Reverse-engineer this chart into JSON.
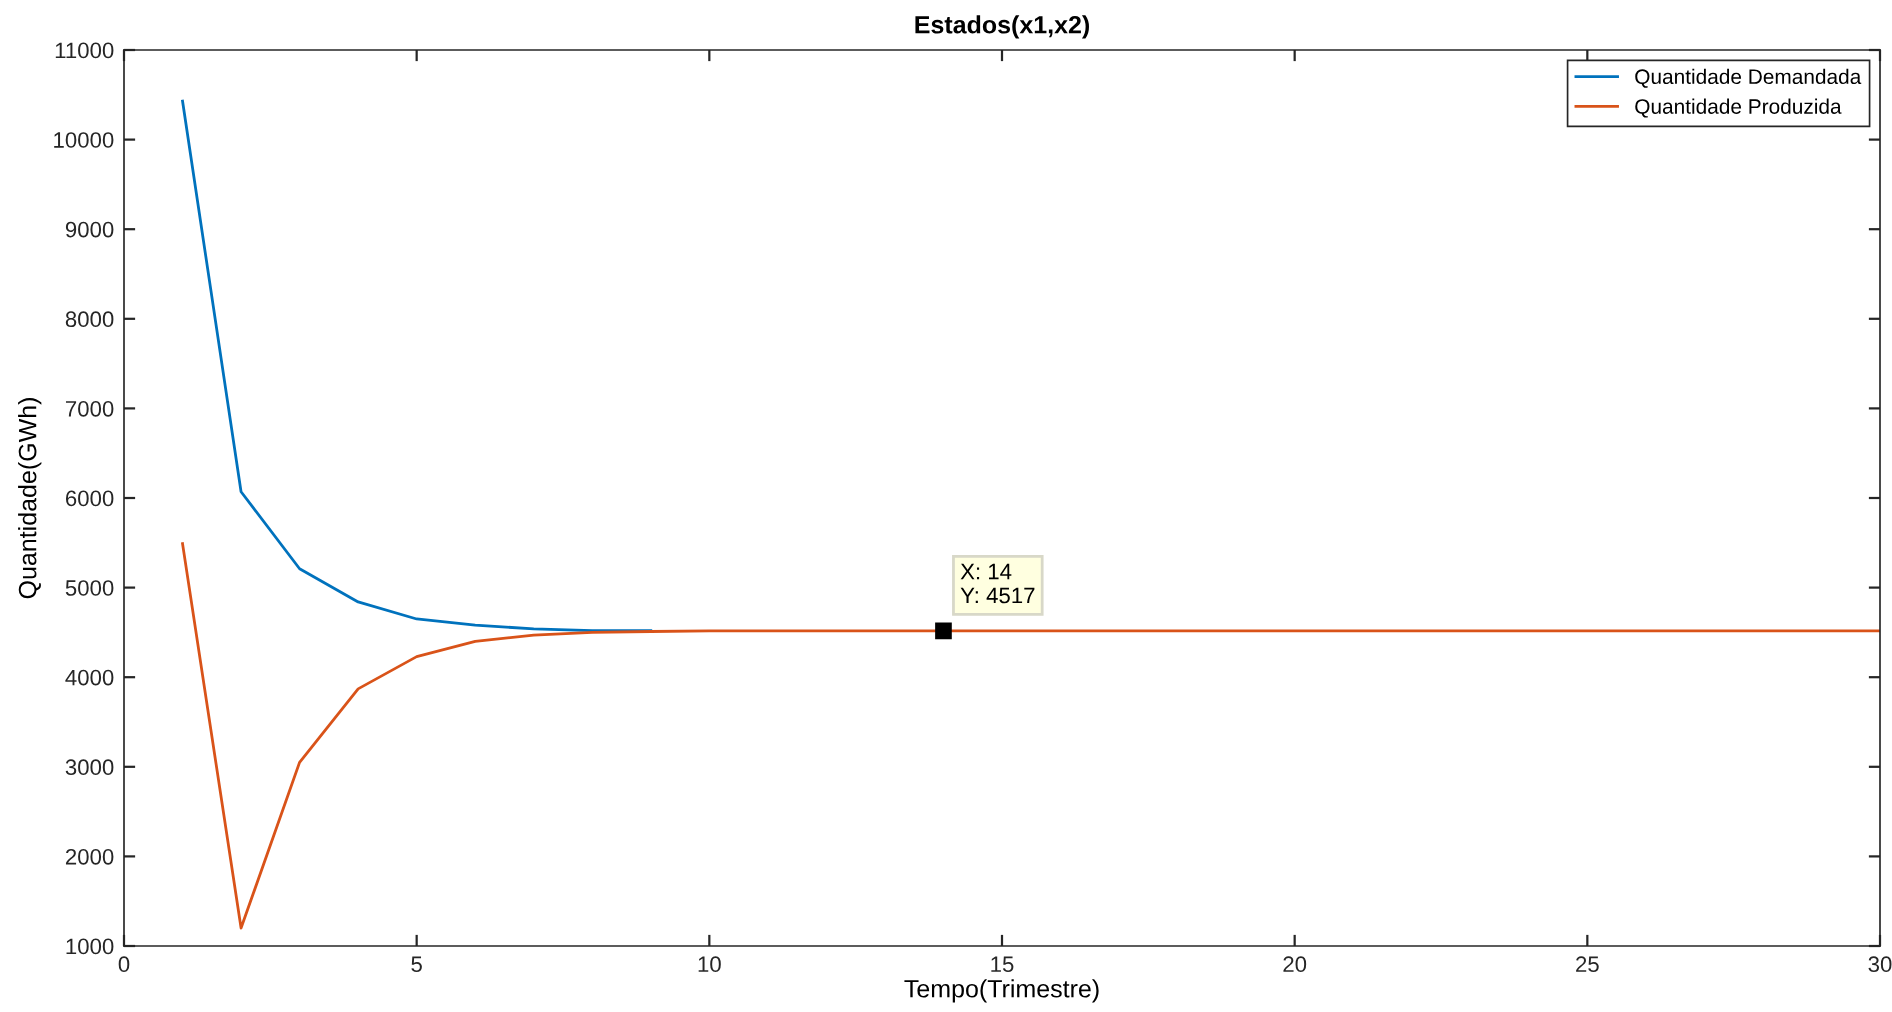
{
  "chart_data": {
    "type": "line",
    "title": "Estados(x1,x2)",
    "xlabel": "Tempo(Trimestre)",
    "ylabel": "Quantidade(GWh)",
    "x": [
      1,
      2,
      3,
      4,
      5,
      6,
      7,
      8,
      9,
      10,
      11,
      12,
      13,
      14,
      15,
      16,
      17,
      18,
      19,
      20,
      21,
      22,
      23,
      24,
      25,
      26,
      27,
      28,
      29,
      30
    ],
    "series": [
      {
        "name": "Quantidade Demandada",
        "color": "#0072bd",
        "values": [
          10430,
          6070,
          5210,
          4840,
          4650,
          4580,
          4540,
          4520,
          4520,
          null,
          null,
          null,
          null,
          null,
          null,
          null,
          null,
          null,
          null,
          null,
          null,
          null,
          null,
          null,
          null,
          null,
          null,
          null,
          null,
          null
        ]
      },
      {
        "name": "Quantidade Produzida",
        "color": "#d95319",
        "values": [
          5490,
          1200,
          3050,
          3870,
          4230,
          4400,
          4470,
          4500,
          4510,
          4517,
          4517,
          4517,
          4517,
          4517,
          4517,
          4517,
          4517,
          4517,
          4517,
          4517,
          4517,
          4517,
          4517,
          4517,
          4517,
          4517,
          4517,
          4517,
          4517,
          4517
        ]
      }
    ],
    "annotations": [
      {
        "text": "X: 14\nY: 4517",
        "x": 14,
        "y": 4517
      }
    ],
    "xlim": [
      0,
      30
    ],
    "xticks": [
      0,
      5,
      10,
      15,
      20,
      25,
      30
    ],
    "ylim": [
      1000,
      11000
    ],
    "yticks": [
      1000,
      2000,
      3000,
      4000,
      5000,
      6000,
      7000,
      8000,
      9000,
      10000,
      11000
    ],
    "grid": false,
    "legend": "top right",
    "marker": "none",
    "line_style": "solid"
  }
}
